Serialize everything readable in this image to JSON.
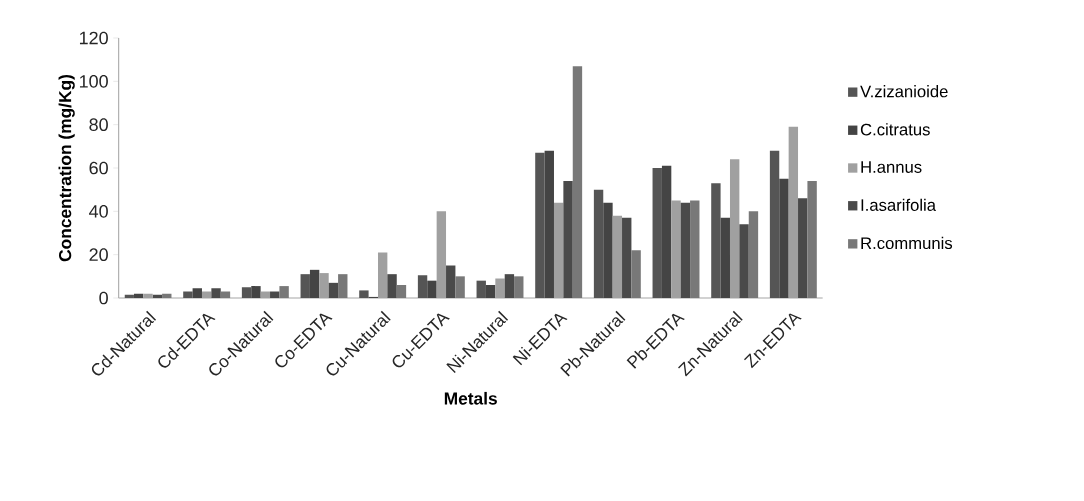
{
  "chart_data": {
    "type": "bar",
    "xlabel": "Metals",
    "ylabel": "Concentration (mg/Kg)",
    "categories": [
      "Cd-Natural",
      "Cd-EDTA",
      "Co-Natural",
      "Co-EDTA",
      "Cu-Natural",
      "Cu-EDTA",
      "Ni-Natural",
      "Ni-EDTA",
      "Pb-Natural",
      "Pb-EDTA",
      "Zn-Natural",
      "Zn-EDTA"
    ],
    "series": [
      {
        "name": "V.zizanioide",
        "color": "#555555",
        "values": [
          1.5,
          3,
          5,
          11,
          3.5,
          10.5,
          8,
          67,
          50,
          60,
          53,
          68
        ]
      },
      {
        "name": "C.citratus",
        "color": "#444444",
        "values": [
          2,
          4.5,
          5.5,
          13,
          0.5,
          8,
          6,
          68,
          44,
          61,
          37,
          55
        ]
      },
      {
        "name": "H.annus",
        "color": "#a0a0a0",
        "values": [
          2,
          3,
          3,
          11.5,
          21,
          40,
          9,
          44,
          38,
          45,
          64,
          79
        ]
      },
      {
        "name": "I.asarifolia",
        "color": "#4a4a4a",
        "values": [
          1.5,
          4.5,
          3,
          7,
          11,
          15,
          11,
          54,
          37,
          44,
          34,
          46
        ]
      },
      {
        "name": "R.communis",
        "color": "#787878",
        "values": [
          2,
          3,
          5.5,
          11,
          6,
          10,
          10,
          107,
          22,
          45,
          40,
          54
        ]
      }
    ],
    "ylim": [
      0,
      120
    ],
    "yticks": [
      0,
      20,
      40,
      60,
      80,
      100,
      120
    ],
    "legend": "right"
  }
}
